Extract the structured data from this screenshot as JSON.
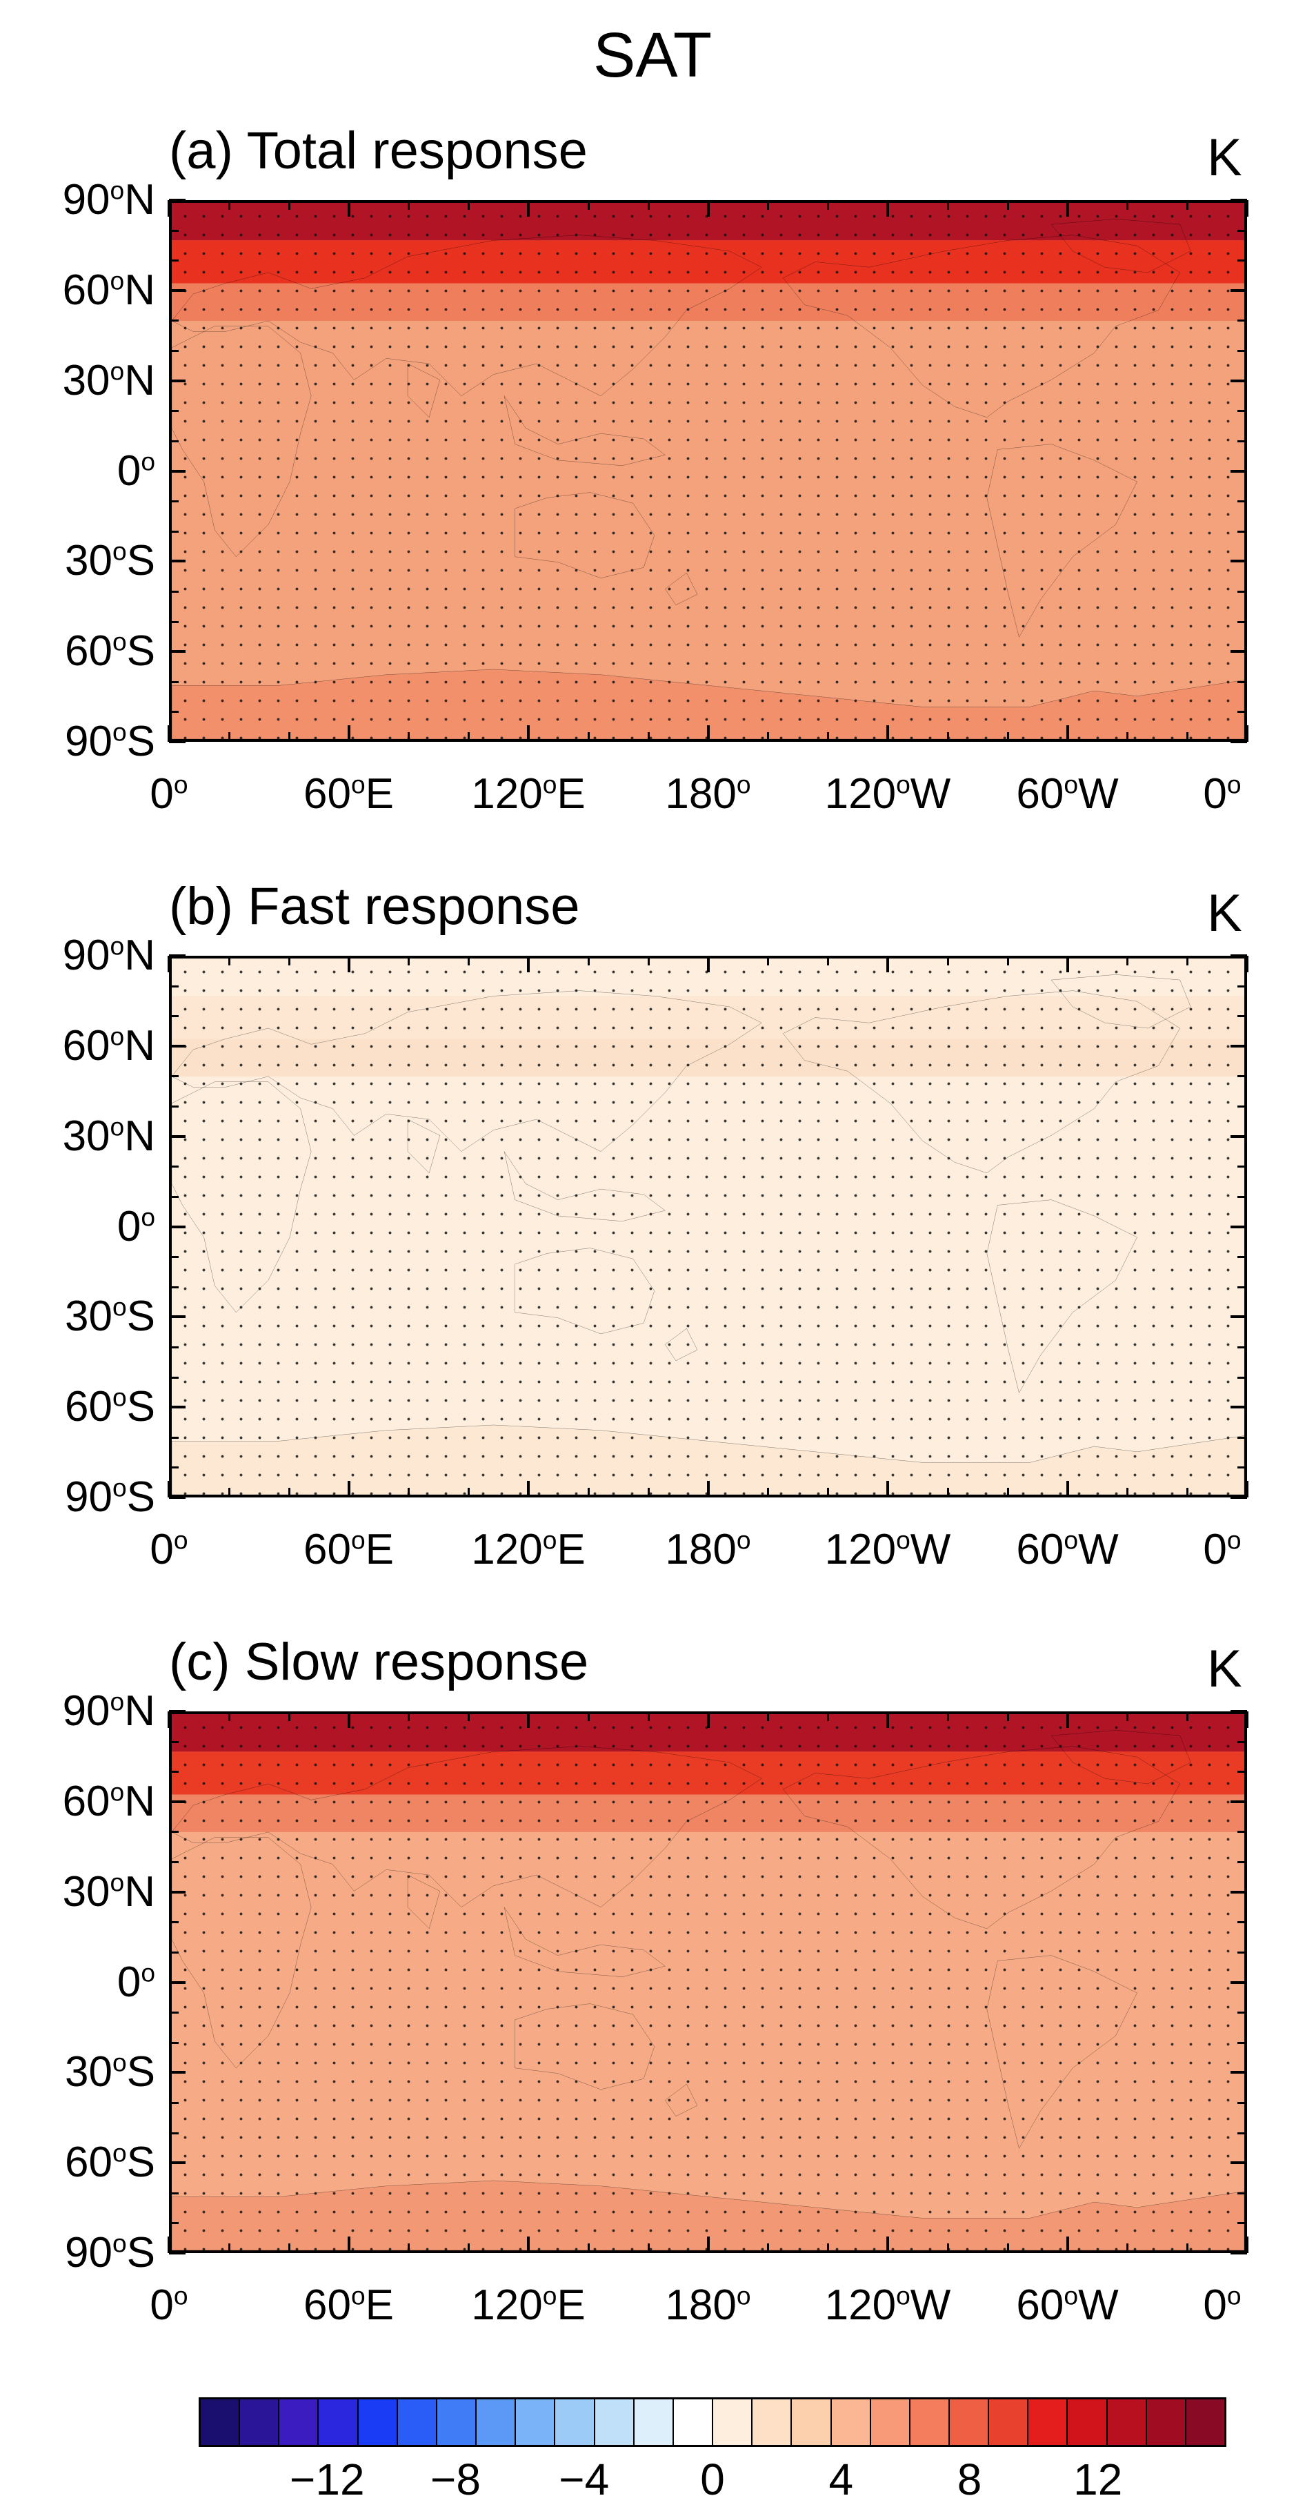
{
  "figure_title": "SAT",
  "panels": [
    {
      "label": "(a) Total response",
      "unit": "K",
      "base_color": "#f4a27c",
      "polar_color": "#b01425",
      "subpolar_color": "#e8311f",
      "land_hot_color": "#ef7e5c"
    },
    {
      "label": "(b) Fast response",
      "unit": "K",
      "base_color": "#fdeedd",
      "polar_color": "#fdeedd",
      "subpolar_color": "#fde7d3",
      "land_hot_color": "#fbe1c9"
    },
    {
      "label": "(c) Slow response",
      "unit": "K",
      "base_color": "#f6ab86",
      "polar_color": "#b01425",
      "subpolar_color": "#ea3b25",
      "land_hot_color": "#f08563"
    }
  ],
  "y_ticks": [
    {
      "deg": "90",
      "hem": "N"
    },
    {
      "deg": "60",
      "hem": "N"
    },
    {
      "deg": "30",
      "hem": "N"
    },
    {
      "deg": "0",
      "hem": ""
    },
    {
      "deg": "30",
      "hem": "S"
    },
    {
      "deg": "60",
      "hem": "S"
    },
    {
      "deg": "90",
      "hem": "S"
    }
  ],
  "x_ticks": [
    {
      "deg": "0",
      "hem": ""
    },
    {
      "deg": "60",
      "hem": "E"
    },
    {
      "deg": "120",
      "hem": "E"
    },
    {
      "deg": "180",
      "hem": ""
    },
    {
      "deg": "120",
      "hem": "W"
    },
    {
      "deg": "60",
      "hem": "W"
    },
    {
      "deg": "0",
      "hem": ""
    }
  ],
  "colorbar": {
    "colors": [
      "#1a0f6e",
      "#2a1599",
      "#3a1cc0",
      "#2b27df",
      "#1b3cf5",
      "#2a5df7",
      "#3f7cf6",
      "#5c98f6",
      "#7ab3f7",
      "#9ccbf7",
      "#bfe0f8",
      "#dceffa",
      "#ffffff",
      "#fdeedd",
      "#fde0c6",
      "#fccfad",
      "#fbb693",
      "#f89a77",
      "#f47d5d",
      "#ef5f44",
      "#e8412d",
      "#e41e1c",
      "#d1141c",
      "#b8101e",
      "#a00d22",
      "#890a24"
    ],
    "labels": [
      "−12",
      "−8",
      "−4",
      "0",
      "4",
      "8",
      "12"
    ],
    "label_values": [
      -12,
      -8,
      -4,
      0,
      4,
      8,
      12
    ],
    "range": [
      -16,
      16
    ]
  }
}
